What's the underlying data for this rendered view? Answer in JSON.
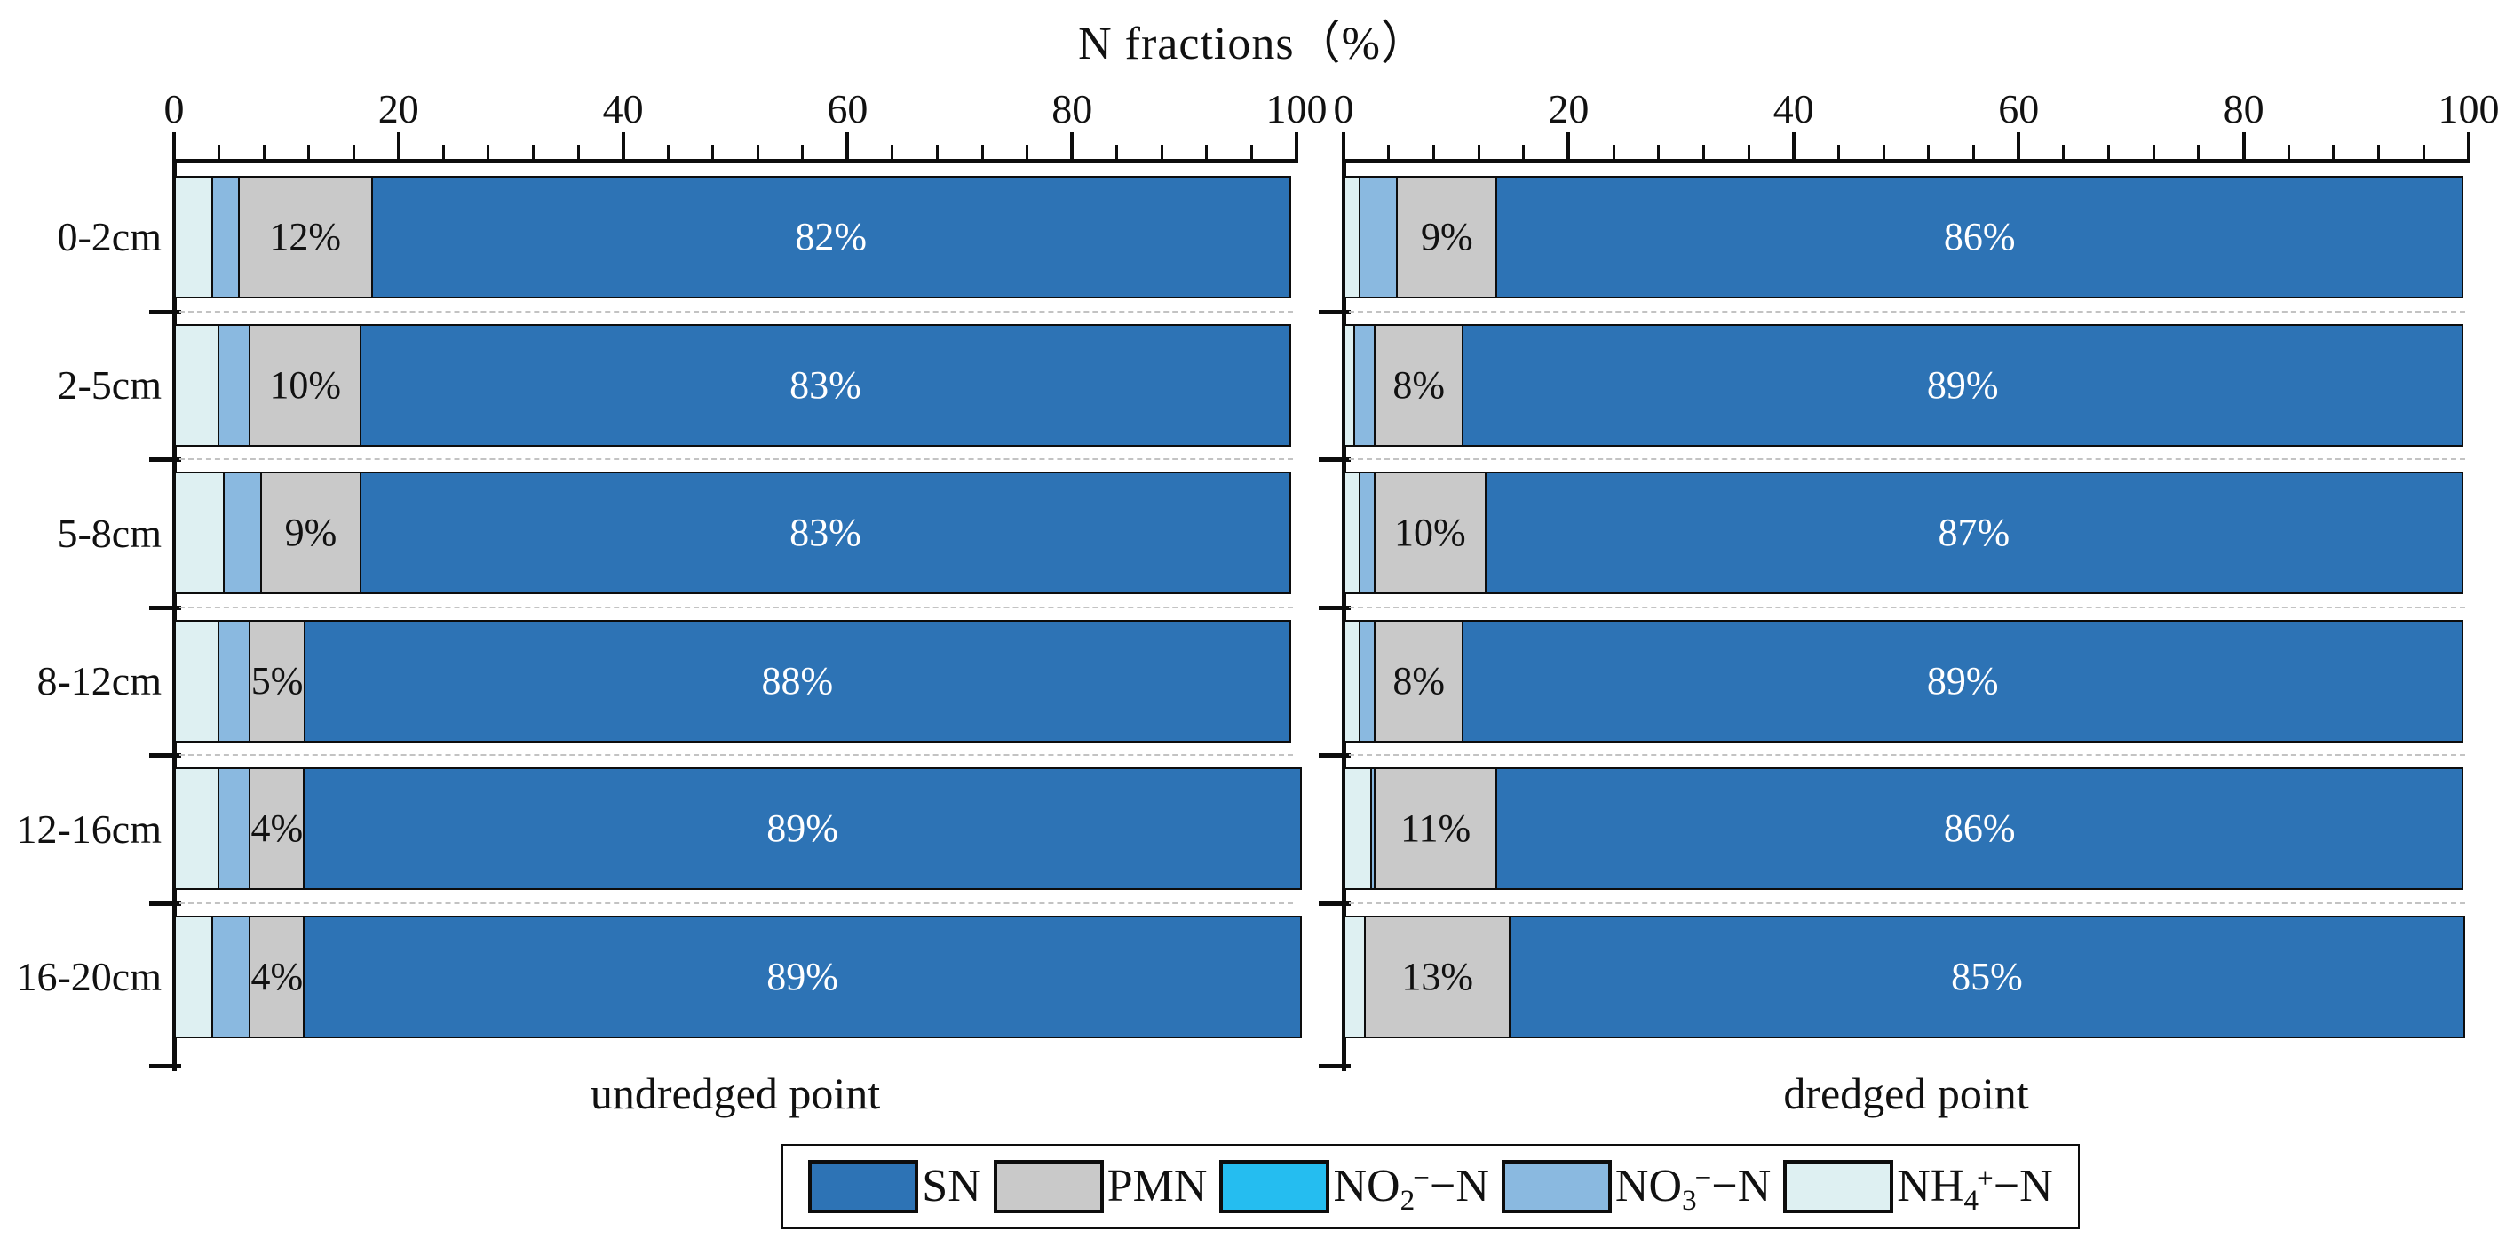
{
  "chart_data": {
    "type": "bar",
    "orientation": "horizontal",
    "stacked": true,
    "title": "N fractions（%）",
    "categories": [
      "0-2cm",
      "2-5cm",
      "5-8cm",
      "8-12cm",
      "12-16cm",
      "16-20cm"
    ],
    "x_axis": {
      "position": "top",
      "min": 0,
      "max": 100,
      "major_ticks": [
        0,
        20,
        40,
        60,
        80,
        100
      ],
      "minor_step": 4
    },
    "grid": "dashed-row-separators",
    "colors": {
      "SN": "#2d73b5",
      "PMN": "#c9c9c9",
      "NO2": "#25bdf0",
      "NO3": "#8ab9e0",
      "NH4": "#def0f2",
      "border": "#0d0d0d",
      "sn_label_text": "#ffffff",
      "pmn_label_text": "#111111"
    },
    "segment_order": [
      "NH4",
      "NO3",
      "NO2",
      "PMN",
      "SN"
    ],
    "panels": [
      {
        "caption": "undredged point",
        "series": [
          {
            "key": "NH4",
            "name": "NH4+-N",
            "values": [
              3.5,
              4,
              4.5,
              4,
              4,
              3.5
            ],
            "show_labels": false
          },
          {
            "key": "NO3",
            "name": "NO3--N",
            "values": [
              2.5,
              3,
              3.5,
              3,
              3,
              3.5
            ],
            "show_labels": false
          },
          {
            "key": "NO2",
            "name": "NO2--N",
            "values": [
              0,
              0,
              0,
              0,
              0,
              0
            ],
            "show_labels": false
          },
          {
            "key": "PMN",
            "name": "PMN",
            "values": [
              12,
              10,
              9,
              5,
              4,
              4
            ],
            "show_labels": true,
            "label_color": "#111111",
            "labels": [
              "12%",
              "10%",
              "9%",
              "5%",
              "4%",
              "4%"
            ]
          },
          {
            "key": "SN",
            "name": "SN",
            "values": [
              82,
              83,
              83,
              88,
              89,
              89
            ],
            "show_labels": true,
            "label_color": "#ffffff",
            "labels": [
              "82%",
              "83%",
              "83%",
              "88%",
              "89%",
              "89%"
            ]
          }
        ]
      },
      {
        "caption": "dredged point",
        "series": [
          {
            "key": "NH4",
            "name": "NH4+-N",
            "values": [
              1.5,
              1,
              1.5,
              1.5,
              2.5,
              2
            ],
            "show_labels": false
          },
          {
            "key": "NO3",
            "name": "NO3--N",
            "values": [
              3.5,
              2,
              1.5,
              1.5,
              0.5,
              0
            ],
            "show_labels": false
          },
          {
            "key": "NO2",
            "name": "NO2--N",
            "values": [
              0,
              0,
              0,
              0,
              0,
              0
            ],
            "show_labels": false
          },
          {
            "key": "PMN",
            "name": "PMN",
            "values": [
              9,
              8,
              10,
              8,
              11,
              13
            ],
            "show_labels": true,
            "label_color": "#111111",
            "labels": [
              "9%",
              "8%",
              "10%",
              "8%",
              "11%",
              "13%"
            ]
          },
          {
            "key": "SN",
            "name": "SN",
            "values": [
              86,
              89,
              87,
              89,
              86,
              85
            ],
            "show_labels": true,
            "label_color": "#ffffff",
            "labels": [
              "86%",
              "89%",
              "87%",
              "89%",
              "86%",
              "85%"
            ]
          }
        ]
      }
    ],
    "legend": {
      "position": "bottom-center",
      "items": [
        {
          "key": "SN",
          "label_parts": [
            {
              "t": "SN"
            }
          ]
        },
        {
          "key": "PMN",
          "label_parts": [
            {
              "t": "PMN"
            }
          ]
        },
        {
          "key": "NO2",
          "label_parts": [
            {
              "t": "NO"
            },
            {
              "sub": "2"
            },
            {
              "sup": "−"
            },
            {
              "t": "−N"
            }
          ]
        },
        {
          "key": "NO3",
          "label_parts": [
            {
              "t": "NO"
            },
            {
              "sub": "3"
            },
            {
              "sup": "−"
            },
            {
              "t": "−N"
            }
          ]
        },
        {
          "key": "NH4",
          "label_parts": [
            {
              "t": "NH"
            },
            {
              "sub": "4"
            },
            {
              "sup": "+"
            },
            {
              "t": "−N"
            }
          ]
        }
      ]
    }
  }
}
